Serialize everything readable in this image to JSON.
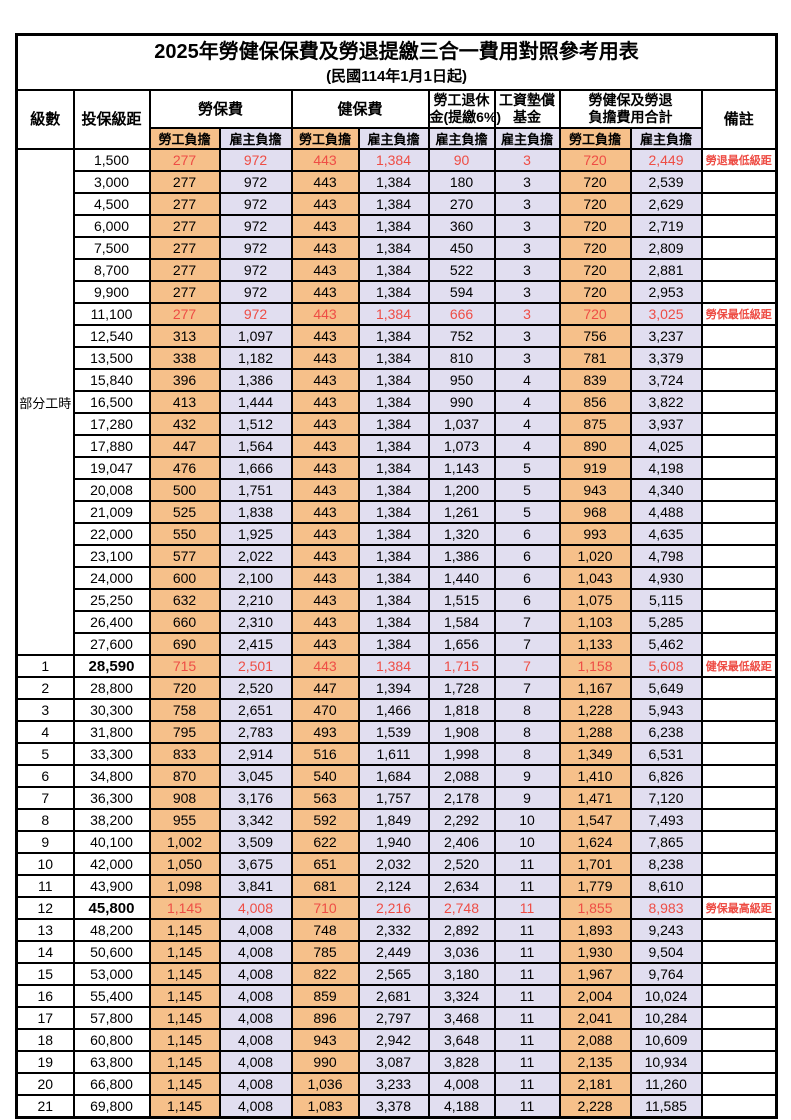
{
  "title": "2025年勞健保保費及勞退提繳三合一費用對照參考用表",
  "subtitle": "(民國114年1月1日起)",
  "colors": {
    "employee_column_bg": "#F6C08A",
    "employer_column_bg": "#E1DEF0",
    "highlight_text": "#EE4D45",
    "border": "#000000"
  },
  "header": {
    "level": "級數",
    "bracket": "投保級距",
    "labor_insurance": "勞保費",
    "health_insurance": "健保費",
    "pension_line1": "勞工退休",
    "pension_line2": "金(提繳6%)",
    "wage_fund_line1": "工資墊償",
    "wage_fund_line2": "基金",
    "total_line1": "勞健保及勞退",
    "total_line2": "負擔費用合計",
    "employee": "勞工負擔",
    "employer": "雇主負擔",
    "remark": "備註"
  },
  "part_time_label": "部分工時",
  "part_time_rowspan": 23,
  "rows": [
    {
      "level": "",
      "bracket": "1,500",
      "v": [
        "277",
        "972",
        "443",
        "1,384",
        "90",
        "3",
        "720",
        "2,449"
      ],
      "remark": "勞退最低級距",
      "hl": true,
      "bold": false
    },
    {
      "level": "",
      "bracket": "3,000",
      "v": [
        "277",
        "972",
        "443",
        "1,384",
        "180",
        "3",
        "720",
        "2,539"
      ],
      "remark": "",
      "hl": false,
      "bold": false
    },
    {
      "level": "",
      "bracket": "4,500",
      "v": [
        "277",
        "972",
        "443",
        "1,384",
        "270",
        "3",
        "720",
        "2,629"
      ],
      "remark": "",
      "hl": false,
      "bold": false
    },
    {
      "level": "",
      "bracket": "6,000",
      "v": [
        "277",
        "972",
        "443",
        "1,384",
        "360",
        "3",
        "720",
        "2,719"
      ],
      "remark": "",
      "hl": false,
      "bold": false
    },
    {
      "level": "",
      "bracket": "7,500",
      "v": [
        "277",
        "972",
        "443",
        "1,384",
        "450",
        "3",
        "720",
        "2,809"
      ],
      "remark": "",
      "hl": false,
      "bold": false
    },
    {
      "level": "",
      "bracket": "8,700",
      "v": [
        "277",
        "972",
        "443",
        "1,384",
        "522",
        "3",
        "720",
        "2,881"
      ],
      "remark": "",
      "hl": false,
      "bold": false
    },
    {
      "level": "",
      "bracket": "9,900",
      "v": [
        "277",
        "972",
        "443",
        "1,384",
        "594",
        "3",
        "720",
        "2,953"
      ],
      "remark": "",
      "hl": false,
      "bold": false
    },
    {
      "level": "",
      "bracket": "11,100",
      "v": [
        "277",
        "972",
        "443",
        "1,384",
        "666",
        "3",
        "720",
        "3,025"
      ],
      "remark": "勞保最低級距",
      "hl": true,
      "bold": false
    },
    {
      "level": "",
      "bracket": "12,540",
      "v": [
        "313",
        "1,097",
        "443",
        "1,384",
        "752",
        "3",
        "756",
        "3,237"
      ],
      "remark": "",
      "hl": false,
      "bold": false
    },
    {
      "level": "",
      "bracket": "13,500",
      "v": [
        "338",
        "1,182",
        "443",
        "1,384",
        "810",
        "3",
        "781",
        "3,379"
      ],
      "remark": "",
      "hl": false,
      "bold": false
    },
    {
      "level": "",
      "bracket": "15,840",
      "v": [
        "396",
        "1,386",
        "443",
        "1,384",
        "950",
        "4",
        "839",
        "3,724"
      ],
      "remark": "",
      "hl": false,
      "bold": false
    },
    {
      "level": "",
      "bracket": "16,500",
      "v": [
        "413",
        "1,444",
        "443",
        "1,384",
        "990",
        "4",
        "856",
        "3,822"
      ],
      "remark": "",
      "hl": false,
      "bold": false
    },
    {
      "level": "",
      "bracket": "17,280",
      "v": [
        "432",
        "1,512",
        "443",
        "1,384",
        "1,037",
        "4",
        "875",
        "3,937"
      ],
      "remark": "",
      "hl": false,
      "bold": false
    },
    {
      "level": "",
      "bracket": "17,880",
      "v": [
        "447",
        "1,564",
        "443",
        "1,384",
        "1,073",
        "4",
        "890",
        "4,025"
      ],
      "remark": "",
      "hl": false,
      "bold": false
    },
    {
      "level": "",
      "bracket": "19,047",
      "v": [
        "476",
        "1,666",
        "443",
        "1,384",
        "1,143",
        "5",
        "919",
        "4,198"
      ],
      "remark": "",
      "hl": false,
      "bold": false
    },
    {
      "level": "",
      "bracket": "20,008",
      "v": [
        "500",
        "1,751",
        "443",
        "1,384",
        "1,200",
        "5",
        "943",
        "4,340"
      ],
      "remark": "",
      "hl": false,
      "bold": false
    },
    {
      "level": "",
      "bracket": "21,009",
      "v": [
        "525",
        "1,838",
        "443",
        "1,384",
        "1,261",
        "5",
        "968",
        "4,488"
      ],
      "remark": "",
      "hl": false,
      "bold": false
    },
    {
      "level": "",
      "bracket": "22,000",
      "v": [
        "550",
        "1,925",
        "443",
        "1,384",
        "1,320",
        "6",
        "993",
        "4,635"
      ],
      "remark": "",
      "hl": false,
      "bold": false
    },
    {
      "level": "",
      "bracket": "23,100",
      "v": [
        "577",
        "2,022",
        "443",
        "1,384",
        "1,386",
        "6",
        "1,020",
        "4,798"
      ],
      "remark": "",
      "hl": false,
      "bold": false
    },
    {
      "level": "",
      "bracket": "24,000",
      "v": [
        "600",
        "2,100",
        "443",
        "1,384",
        "1,440",
        "6",
        "1,043",
        "4,930"
      ],
      "remark": "",
      "hl": false,
      "bold": false
    },
    {
      "level": "",
      "bracket": "25,250",
      "v": [
        "632",
        "2,210",
        "443",
        "1,384",
        "1,515",
        "6",
        "1,075",
        "5,115"
      ],
      "remark": "",
      "hl": false,
      "bold": false
    },
    {
      "level": "",
      "bracket": "26,400",
      "v": [
        "660",
        "2,310",
        "443",
        "1,384",
        "1,584",
        "7",
        "1,103",
        "5,285"
      ],
      "remark": "",
      "hl": false,
      "bold": false
    },
    {
      "level": "",
      "bracket": "27,600",
      "v": [
        "690",
        "2,415",
        "443",
        "1,384",
        "1,656",
        "7",
        "1,133",
        "5,462"
      ],
      "remark": "",
      "hl": false,
      "bold": false
    },
    {
      "level": "1",
      "bracket": "28,590",
      "v": [
        "715",
        "2,501",
        "443",
        "1,384",
        "1,715",
        "7",
        "1,158",
        "5,608"
      ],
      "remark": "健保最低級距",
      "hl": true,
      "bold": true
    },
    {
      "level": "2",
      "bracket": "28,800",
      "v": [
        "720",
        "2,520",
        "447",
        "1,394",
        "1,728",
        "7",
        "1,167",
        "5,649"
      ],
      "remark": "",
      "hl": false,
      "bold": false
    },
    {
      "level": "3",
      "bracket": "30,300",
      "v": [
        "758",
        "2,651",
        "470",
        "1,466",
        "1,818",
        "8",
        "1,228",
        "5,943"
      ],
      "remark": "",
      "hl": false,
      "bold": false
    },
    {
      "level": "4",
      "bracket": "31,800",
      "v": [
        "795",
        "2,783",
        "493",
        "1,539",
        "1,908",
        "8",
        "1,288",
        "6,238"
      ],
      "remark": "",
      "hl": false,
      "bold": false
    },
    {
      "level": "5",
      "bracket": "33,300",
      "v": [
        "833",
        "2,914",
        "516",
        "1,611",
        "1,998",
        "8",
        "1,349",
        "6,531"
      ],
      "remark": "",
      "hl": false,
      "bold": false
    },
    {
      "level": "6",
      "bracket": "34,800",
      "v": [
        "870",
        "3,045",
        "540",
        "1,684",
        "2,088",
        "9",
        "1,410",
        "6,826"
      ],
      "remark": "",
      "hl": false,
      "bold": false
    },
    {
      "level": "7",
      "bracket": "36,300",
      "v": [
        "908",
        "3,176",
        "563",
        "1,757",
        "2,178",
        "9",
        "1,471",
        "7,120"
      ],
      "remark": "",
      "hl": false,
      "bold": false
    },
    {
      "level": "8",
      "bracket": "38,200",
      "v": [
        "955",
        "3,342",
        "592",
        "1,849",
        "2,292",
        "10",
        "1,547",
        "7,493"
      ],
      "remark": "",
      "hl": false,
      "bold": false
    },
    {
      "level": "9",
      "bracket": "40,100",
      "v": [
        "1,002",
        "3,509",
        "622",
        "1,940",
        "2,406",
        "10",
        "1,624",
        "7,865"
      ],
      "remark": "",
      "hl": false,
      "bold": false
    },
    {
      "level": "10",
      "bracket": "42,000",
      "v": [
        "1,050",
        "3,675",
        "651",
        "2,032",
        "2,520",
        "11",
        "1,701",
        "8,238"
      ],
      "remark": "",
      "hl": false,
      "bold": false
    },
    {
      "level": "11",
      "bracket": "43,900",
      "v": [
        "1,098",
        "3,841",
        "681",
        "2,124",
        "2,634",
        "11",
        "1,779",
        "8,610"
      ],
      "remark": "",
      "hl": false,
      "bold": false
    },
    {
      "level": "12",
      "bracket": "45,800",
      "v": [
        "1,145",
        "4,008",
        "710",
        "2,216",
        "2,748",
        "11",
        "1,855",
        "8,983"
      ],
      "remark": "勞保最高級距",
      "hl": true,
      "bold": true
    },
    {
      "level": "13",
      "bracket": "48,200",
      "v": [
        "1,145",
        "4,008",
        "748",
        "2,332",
        "2,892",
        "11",
        "1,893",
        "9,243"
      ],
      "remark": "",
      "hl": false,
      "bold": false
    },
    {
      "level": "14",
      "bracket": "50,600",
      "v": [
        "1,145",
        "4,008",
        "785",
        "2,449",
        "3,036",
        "11",
        "1,930",
        "9,504"
      ],
      "remark": "",
      "hl": false,
      "bold": false
    },
    {
      "level": "15",
      "bracket": "53,000",
      "v": [
        "1,145",
        "4,008",
        "822",
        "2,565",
        "3,180",
        "11",
        "1,967",
        "9,764"
      ],
      "remark": "",
      "hl": false,
      "bold": false
    },
    {
      "level": "16",
      "bracket": "55,400",
      "v": [
        "1,145",
        "4,008",
        "859",
        "2,681",
        "3,324",
        "11",
        "2,004",
        "10,024"
      ],
      "remark": "",
      "hl": false,
      "bold": false
    },
    {
      "level": "17",
      "bracket": "57,800",
      "v": [
        "1,145",
        "4,008",
        "896",
        "2,797",
        "3,468",
        "11",
        "2,041",
        "10,284"
      ],
      "remark": "",
      "hl": false,
      "bold": false
    },
    {
      "level": "18",
      "bracket": "60,800",
      "v": [
        "1,145",
        "4,008",
        "943",
        "2,942",
        "3,648",
        "11",
        "2,088",
        "10,609"
      ],
      "remark": "",
      "hl": false,
      "bold": false
    },
    {
      "level": "19",
      "bracket": "63,800",
      "v": [
        "1,145",
        "4,008",
        "990",
        "3,087",
        "3,828",
        "11",
        "2,135",
        "10,934"
      ],
      "remark": "",
      "hl": false,
      "bold": false
    },
    {
      "level": "20",
      "bracket": "66,800",
      "v": [
        "1,145",
        "4,008",
        "1,036",
        "3,233",
        "4,008",
        "11",
        "2,181",
        "11,260"
      ],
      "remark": "",
      "hl": false,
      "bold": false
    },
    {
      "level": "21",
      "bracket": "69,800",
      "v": [
        "1,145",
        "4,008",
        "1,083",
        "3,378",
        "4,188",
        "11",
        "2,228",
        "11,585"
      ],
      "remark": "",
      "hl": false,
      "bold": false
    }
  ]
}
